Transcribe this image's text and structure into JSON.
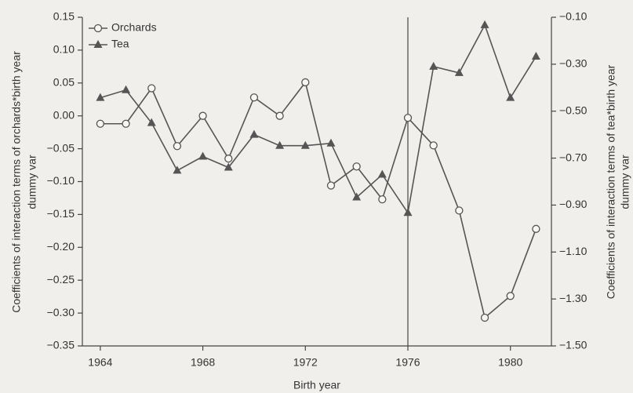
{
  "chart_data": {
    "type": "line",
    "xlabel": "Birth year",
    "ylabel": [
      "Coefficients of interaction terms of orchards*birth year",
      "dummy var"
    ],
    "y2label": [
      "Coefficients of interaction terms of tea*birth year",
      "dummy var"
    ],
    "x": [
      1964,
      1965,
      1966,
      1967,
      1968,
      1969,
      1970,
      1971,
      1972,
      1973,
      1974,
      1975,
      1976,
      1977,
      1978,
      1979,
      1980,
      1981
    ],
    "series": [
      {
        "name": "Orchards",
        "color": "#555555",
        "marker": "circle",
        "axis": "y",
        "values": [
          -0.012,
          -0.012,
          0.042,
          -0.046,
          0.0,
          -0.065,
          0.028,
          0.0,
          0.051,
          -0.106,
          -0.077,
          -0.127,
          -0.003,
          -0.045,
          -0.144,
          -0.307,
          -0.274,
          -0.172
        ]
      },
      {
        "name": "Tea",
        "color": "#555555",
        "marker": "triangle",
        "axis": "y2",
        "values": [
          -0.443,
          -0.41,
          -0.55,
          -0.753,
          -0.693,
          -0.74,
          -0.6,
          -0.647,
          -0.647,
          -0.637,
          -0.867,
          -0.77,
          -0.933,
          -0.31,
          -0.337,
          -0.133,
          -0.443,
          -0.267
        ]
      }
    ],
    "vline": 1976,
    "xlim": [
      1963.3,
      1981.6
    ],
    "xticks": [
      1964,
      1968,
      1972,
      1976,
      1980
    ],
    "ylim": [
      -0.35,
      0.15
    ],
    "yticks": [
      {
        "value": 0.15,
        "label": "0.15"
      },
      {
        "value": 0.1,
        "label": "0.10"
      },
      {
        "value": 0.05,
        "label": "0.05"
      },
      {
        "value": 0,
        "label": "0.00"
      },
      {
        "value": -0.05,
        "label": "−0.05"
      },
      {
        "value": -0.1,
        "label": "−0.10"
      },
      {
        "value": -0.15,
        "label": "−0.15"
      },
      {
        "value": -0.2,
        "label": "−0.20"
      },
      {
        "value": -0.25,
        "label": "−0.25"
      },
      {
        "value": -0.3,
        "label": "−0.30"
      },
      {
        "value": -0.35,
        "label": "−0.35"
      }
    ],
    "y2lim": [
      -1.5,
      -0.1
    ],
    "y2ticks": [
      {
        "value": -0.1,
        "label": "−0.10"
      },
      {
        "value": -0.3,
        "label": "−0.30"
      },
      {
        "value": -0.5,
        "label": "−0.50"
      },
      {
        "value": -0.7,
        "label": "−0.70"
      },
      {
        "value": -0.9,
        "label": "−0.90"
      },
      {
        "value": -1.1,
        "label": "−1.10"
      },
      {
        "value": -1.3,
        "label": "−1.30"
      },
      {
        "value": -1.5,
        "label": "−1.50"
      }
    ],
    "legend": "upper left"
  }
}
